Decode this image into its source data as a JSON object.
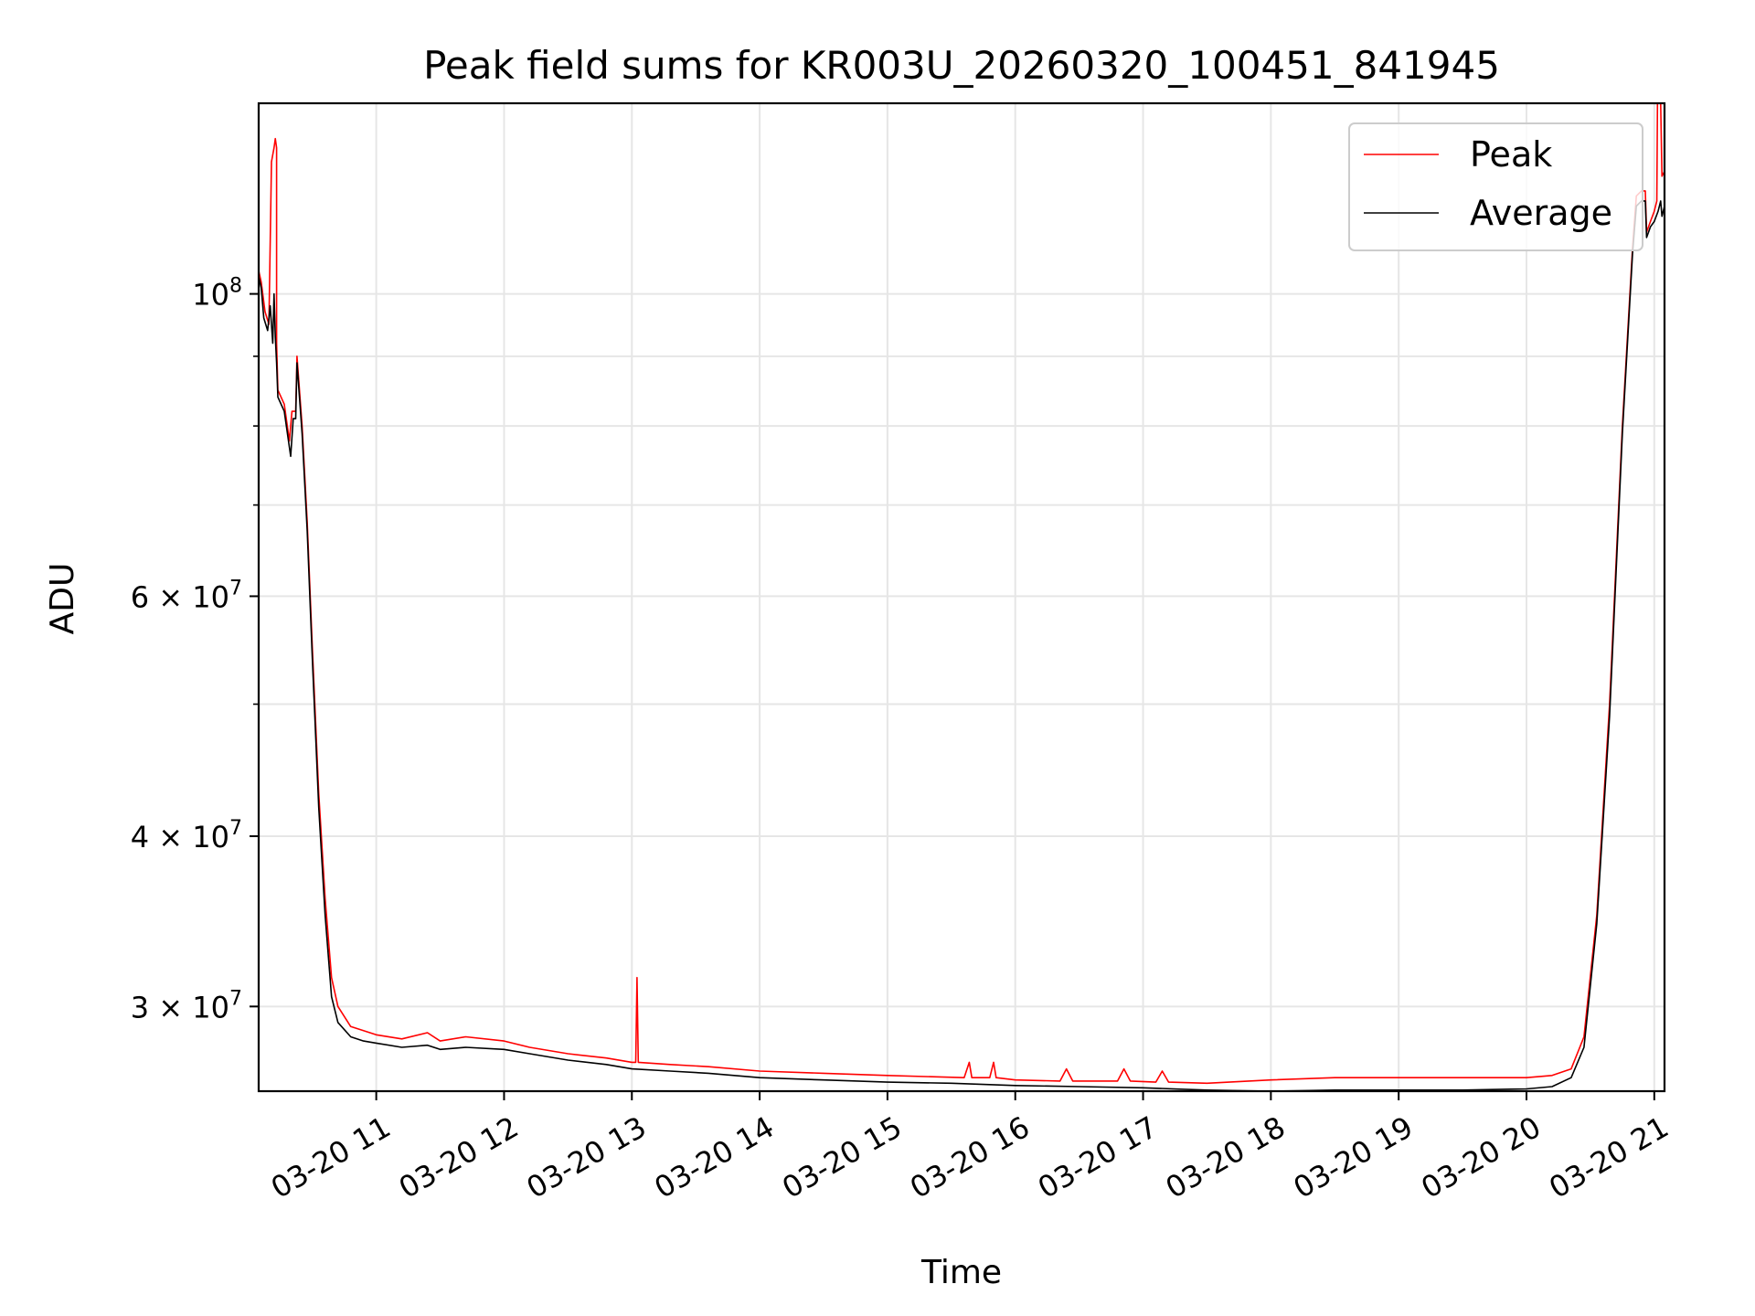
{
  "chart_data": {
    "type": "line",
    "scale": "log",
    "title": "Peak field sums for KR003U_20260320_100451_841945",
    "xlabel": "Time",
    "ylabel": "ADU",
    "x_unit": "hours since 2026-03-20 00:00",
    "xlim": [
      10.08,
      21.08
    ],
    "ylim": [
      26000000,
      138000000
    ],
    "grid": true,
    "legend_position": "top-right",
    "x_ticks": [
      {
        "value": 11,
        "label": "03-20 11"
      },
      {
        "value": 12,
        "label": "03-20 12"
      },
      {
        "value": 13,
        "label": "03-20 13"
      },
      {
        "value": 14,
        "label": "03-20 14"
      },
      {
        "value": 15,
        "label": "03-20 15"
      },
      {
        "value": 16,
        "label": "03-20 16"
      },
      {
        "value": 17,
        "label": "03-20 17"
      },
      {
        "value": 18,
        "label": "03-20 18"
      },
      {
        "value": 19,
        "label": "03-20 19"
      },
      {
        "value": 20,
        "label": "03-20 20"
      },
      {
        "value": 21,
        "label": "03-20 21"
      }
    ],
    "y_major_ticks": [
      {
        "value": 30000000,
        "mantissa": "3",
        "exponent": "7",
        "has_mantissa": true
      },
      {
        "value": 40000000,
        "mantissa": "4",
        "exponent": "7",
        "has_mantissa": true
      },
      {
        "value": 60000000,
        "mantissa": "6",
        "exponent": "7",
        "has_mantissa": true
      },
      {
        "value": 100000000,
        "mantissa": "",
        "exponent": "8",
        "has_mantissa": false
      }
    ],
    "y_minor_ticks": [
      50000000,
      70000000,
      80000000,
      90000000
    ],
    "times_symbol": "×",
    "base": "10",
    "series": [
      {
        "name": "Peak",
        "color": "#ff0000",
        "points": [
          [
            10.08,
            104000000
          ],
          [
            10.1,
            102000000
          ],
          [
            10.13,
            97000000
          ],
          [
            10.16,
            95000000
          ],
          [
            10.18,
            125000000
          ],
          [
            10.2,
            128000000
          ],
          [
            10.21,
            130000000
          ],
          [
            10.22,
            128000000
          ],
          [
            10.22,
            92000000
          ],
          [
            10.23,
            85000000
          ],
          [
            10.28,
            83000000
          ],
          [
            10.32,
            78000000
          ],
          [
            10.34,
            82000000
          ],
          [
            10.37,
            82000000
          ],
          [
            10.38,
            90000000
          ],
          [
            10.42,
            80000000
          ],
          [
            10.46,
            68000000
          ],
          [
            10.5,
            55000000
          ],
          [
            10.55,
            43000000
          ],
          [
            10.6,
            36000000
          ],
          [
            10.65,
            31500000
          ],
          [
            10.7,
            30000000
          ],
          [
            10.8,
            29000000
          ],
          [
            10.9,
            28800000
          ],
          [
            11.0,
            28600000
          ],
          [
            11.2,
            28400000
          ],
          [
            11.4,
            28700000
          ],
          [
            11.5,
            28300000
          ],
          [
            11.7,
            28500000
          ],
          [
            12.0,
            28300000
          ],
          [
            12.2,
            28000000
          ],
          [
            12.5,
            27700000
          ],
          [
            12.8,
            27500000
          ],
          [
            13.0,
            27300000
          ],
          [
            13.03,
            27300000
          ],
          [
            13.04,
            31500000
          ],
          [
            13.05,
            27300000
          ],
          [
            13.3,
            27200000
          ],
          [
            13.6,
            27100000
          ],
          [
            14.0,
            26900000
          ],
          [
            14.5,
            26800000
          ],
          [
            15.0,
            26700000
          ],
          [
            15.6,
            26600000
          ],
          [
            15.64,
            27300000
          ],
          [
            15.66,
            26600000
          ],
          [
            15.8,
            26600000
          ],
          [
            15.83,
            27300000
          ],
          [
            15.85,
            26600000
          ],
          [
            16.0,
            26500000
          ],
          [
            16.35,
            26450000
          ],
          [
            16.4,
            27000000
          ],
          [
            16.45,
            26450000
          ],
          [
            16.8,
            26450000
          ],
          [
            16.85,
            27000000
          ],
          [
            16.9,
            26450000
          ],
          [
            17.1,
            26400000
          ],
          [
            17.15,
            26900000
          ],
          [
            17.2,
            26400000
          ],
          [
            17.5,
            26350000
          ],
          [
            18.0,
            26500000
          ],
          [
            18.5,
            26600000
          ],
          [
            19.0,
            26600000
          ],
          [
            19.5,
            26600000
          ],
          [
            20.0,
            26600000
          ],
          [
            20.2,
            26700000
          ],
          [
            20.35,
            27000000
          ],
          [
            20.45,
            28500000
          ],
          [
            20.55,
            35000000
          ],
          [
            20.65,
            50000000
          ],
          [
            20.75,
            80000000
          ],
          [
            20.83,
            108000000
          ],
          [
            20.86,
            118000000
          ],
          [
            20.9,
            119000000
          ],
          [
            20.93,
            119000000
          ],
          [
            20.94,
            111000000
          ],
          [
            20.97,
            113000000
          ],
          [
            21.0,
            115000000
          ],
          [
            21.02,
            117000000
          ],
          [
            21.025,
            138000000
          ],
          [
            21.05,
            138000000
          ],
          [
            21.06,
            122000000
          ],
          [
            21.08,
            123000000
          ]
        ]
      },
      {
        "name": "Average",
        "color": "#000000",
        "points": [
          [
            10.08,
            103000000
          ],
          [
            10.1,
            101000000
          ],
          [
            10.12,
            96000000
          ],
          [
            10.15,
            94000000
          ],
          [
            10.17,
            98000000
          ],
          [
            10.19,
            92000000
          ],
          [
            10.2,
            100000000
          ],
          [
            10.21,
            93000000
          ],
          [
            10.22,
            89000000
          ],
          [
            10.23,
            84000000
          ],
          [
            10.28,
            82000000
          ],
          [
            10.33,
            76000000
          ],
          [
            10.35,
            81000000
          ],
          [
            10.37,
            81000000
          ],
          [
            10.38,
            89000000
          ],
          [
            10.42,
            79000000
          ],
          [
            10.46,
            67000000
          ],
          [
            10.5,
            54000000
          ],
          [
            10.55,
            42000000
          ],
          [
            10.6,
            35000000
          ],
          [
            10.65,
            30500000
          ],
          [
            10.7,
            29200000
          ],
          [
            10.8,
            28500000
          ],
          [
            10.9,
            28300000
          ],
          [
            11.0,
            28200000
          ],
          [
            11.2,
            28000000
          ],
          [
            11.4,
            28100000
          ],
          [
            11.5,
            27900000
          ],
          [
            11.7,
            28000000
          ],
          [
            12.0,
            27900000
          ],
          [
            12.2,
            27700000
          ],
          [
            12.5,
            27400000
          ],
          [
            12.8,
            27200000
          ],
          [
            13.0,
            27000000
          ],
          [
            13.3,
            26900000
          ],
          [
            13.6,
            26800000
          ],
          [
            14.0,
            26600000
          ],
          [
            14.5,
            26500000
          ],
          [
            15.0,
            26400000
          ],
          [
            15.5,
            26350000
          ],
          [
            16.0,
            26250000
          ],
          [
            16.5,
            26200000
          ],
          [
            17.0,
            26150000
          ],
          [
            17.5,
            26050000
          ],
          [
            18.0,
            26000000
          ],
          [
            18.5,
            26050000
          ],
          [
            19.0,
            26050000
          ],
          [
            19.5,
            26050000
          ],
          [
            20.0,
            26100000
          ],
          [
            20.2,
            26200000
          ],
          [
            20.35,
            26600000
          ],
          [
            20.45,
            28000000
          ],
          [
            20.55,
            34500000
          ],
          [
            20.65,
            49000000
          ],
          [
            20.75,
            79000000
          ],
          [
            20.83,
            107000000
          ],
          [
            20.86,
            116000000
          ],
          [
            20.9,
            117000000
          ],
          [
            20.93,
            117000000
          ],
          [
            20.94,
            110000000
          ],
          [
            20.97,
            112000000
          ],
          [
            21.0,
            113000000
          ],
          [
            21.03,
            115000000
          ],
          [
            21.05,
            117000000
          ],
          [
            21.06,
            114000000
          ],
          [
            21.08,
            116000000
          ]
        ]
      }
    ]
  }
}
